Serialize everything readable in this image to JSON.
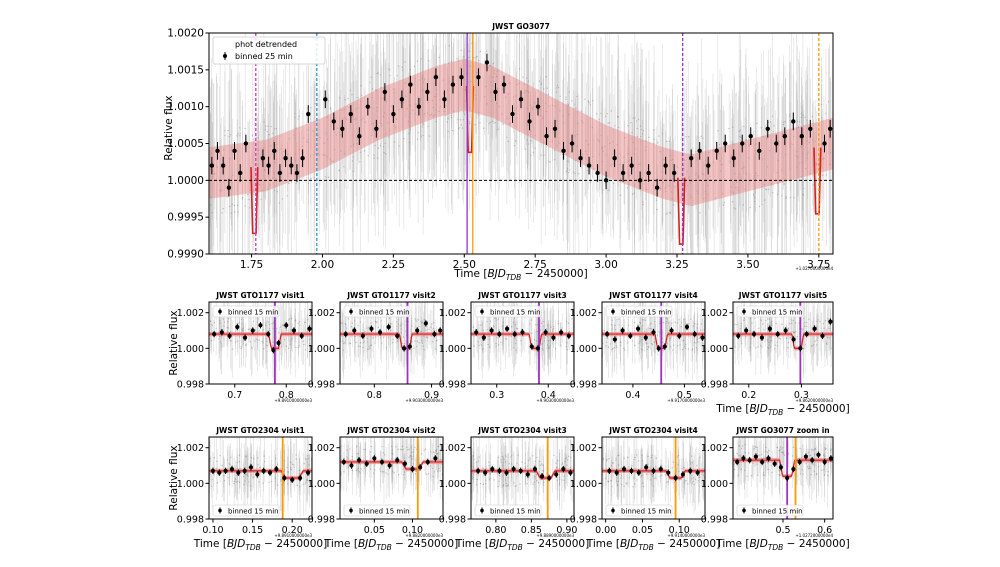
{
  "figure": {
    "xlabel_prefix": "Time [",
    "xlabel_math": "BJD",
    "xlabel_sub": "TDB",
    "xlabel_suffix": " − 2450000]",
    "ylabel": "Relative flux"
  },
  "chart_data": [
    {
      "id": "main",
      "type": "scatter",
      "title": "JWST GO3077",
      "xlim": [
        1.6,
        3.8
      ],
      "ylim": [
        0.999,
        1.002
      ],
      "xticks": [
        1.75,
        2.0,
        2.25,
        2.5,
        2.75,
        3.0,
        3.25,
        3.5,
        3.75
      ],
      "xticklabels": [
        "1.75",
        "2.00",
        "2.25",
        "2.50",
        "2.75",
        "3.00",
        "3.25",
        "3.50",
        "3.75"
      ],
      "yticks": [
        0.999,
        0.9995,
        1.0,
        1.0005,
        1.001,
        1.0015,
        1.002
      ],
      "yticklabels": [
        "0.9990",
        "0.9995",
        "1.0000",
        "1.0005",
        "1.0010",
        "1.0015",
        "1.0020"
      ],
      "offset": "+1.0270000000e4",
      "legend": [
        "phot detrended",
        "binned 25 min"
      ],
      "vlines": [
        {
          "x": 1.765,
          "color": "#cc33cc",
          "style": "dashed"
        },
        {
          "x": 1.98,
          "color": "#3399cc",
          "style": "dashed"
        },
        {
          "x": 2.51,
          "color": "#9933cc",
          "style": "solid"
        },
        {
          "x": 2.53,
          "color": "#ff9900",
          "style": "solid"
        },
        {
          "x": 3.27,
          "color": "#9933cc",
          "style": "dashed"
        },
        {
          "x": 3.75,
          "color": "#ff9900",
          "style": "dashed"
        }
      ],
      "transits": [
        {
          "x": 1.76,
          "depth": 0.0009
        },
        {
          "x": 2.52,
          "depth": 0.0009
        },
        {
          "x": 3.265,
          "depth": 0.0009
        },
        {
          "x": 3.745,
          "depth": 0.0009
        }
      ],
      "model_x": [
        1.6,
        1.8,
        2.0,
        2.2,
        2.4,
        2.5,
        2.6,
        2.8,
        3.0,
        3.2,
        3.3,
        3.5,
        3.7,
        3.8
      ],
      "model_y": [
        1.0001,
        1.0002,
        1.0005,
        1.0009,
        1.0012,
        1.0013,
        1.0012,
        1.0008,
        1.0004,
        1.0001,
        1.0,
        1.0002,
        1.0004,
        1.0005
      ],
      "binned_x": [
        1.61,
        1.63,
        1.65,
        1.67,
        1.69,
        1.71,
        1.73,
        1.79,
        1.81,
        1.83,
        1.85,
        1.87,
        1.89,
        1.91,
        1.93,
        1.95,
        2.01,
        2.04,
        2.07,
        2.1,
        2.13,
        2.16,
        2.19,
        2.22,
        2.25,
        2.28,
        2.31,
        2.34,
        2.37,
        2.4,
        2.43,
        2.46,
        2.49,
        2.55,
        2.58,
        2.61,
        2.64,
        2.67,
        2.7,
        2.73,
        2.76,
        2.79,
        2.82,
        2.85,
        2.88,
        2.91,
        2.94,
        2.97,
        3.0,
        3.03,
        3.06,
        3.09,
        3.12,
        3.15,
        3.18,
        3.21,
        3.24,
        3.3,
        3.33,
        3.36,
        3.39,
        3.42,
        3.45,
        3.48,
        3.51,
        3.54,
        3.57,
        3.6,
        3.63,
        3.66,
        3.69,
        3.72,
        3.77,
        3.79
      ],
      "binned_y": [
        1.0002,
        1.0004,
        1.0002,
        0.9999,
        1.0004,
        1.0001,
        1.0005,
        1.0003,
        1.0002,
        1.0004,
        1.0001,
        1.0003,
        1.0002,
        1.0001,
        1.0003,
        1.0009,
        1.0011,
        1.0008,
        1.0007,
        1.0009,
        1.0006,
        1.001,
        1.0007,
        1.0012,
        1.0009,
        1.0011,
        1.0013,
        1.001,
        1.0012,
        1.0014,
        1.0011,
        1.0013,
        1.0014,
        1.0014,
        1.0016,
        1.0012,
        1.0013,
        1.0009,
        1.0011,
        1.0008,
        1.001,
        1.0006,
        1.0007,
        1.0004,
        1.0005,
        1.0003,
        1.0002,
        1.0001,
        1.0,
        1.0003,
        1.0001,
        1.0002,
        1.0,
        1.0001,
        0.9999,
        1.0002,
        1.0001,
        1.0003,
        1.0004,
        1.0002,
        1.0004,
        1.0005,
        1.0003,
        1.0005,
        1.0006,
        1.0004,
        1.0007,
        1.0005,
        1.0006,
        1.0008,
        1.0006,
        1.0007,
        1.0005,
        1.0007
      ]
    },
    {
      "id": "gto1177_v1",
      "type": "scatter",
      "title": "JWST GTO1177 visit1",
      "xlim": [
        0.65,
        0.85
      ],
      "ylim": [
        0.998,
        1.0026
      ],
      "xticks": [
        0.7,
        0.8
      ],
      "xticklabels": [
        "0.7",
        "0.8"
      ],
      "yticks": [
        0.998,
        1.0,
        1.002
      ],
      "yticklabels": [
        "0.998",
        "1.000",
        "1.002"
      ],
      "offset": "+9.8910000000e3",
      "legend": [
        "binned 15 min"
      ],
      "legend_loc": "top",
      "vlines": [
        {
          "x": 0.778,
          "color": "#a030c0",
          "style": "solid"
        }
      ],
      "transit": {
        "center": 0.778,
        "half_width": 0.012,
        "depth": 0.0008,
        "base": 1.0008
      },
      "binned_x": [
        0.66,
        0.675,
        0.69,
        0.705,
        0.72,
        0.735,
        0.75,
        0.765,
        0.775,
        0.785,
        0.8,
        0.815,
        0.83,
        0.845
      ],
      "binned_y": [
        1.0008,
        1.0009,
        1.0007,
        1.0012,
        1.0006,
        1.001,
        1.0013,
        1.0008,
        0.9999,
        1.0003,
        1.0013,
        1.001,
        1.0007,
        1.0011
      ]
    },
    {
      "id": "gto1177_v2",
      "type": "scatter",
      "title": "JWST GTO1177 visit2",
      "xlim": [
        0.74,
        0.92
      ],
      "ylim": [
        0.998,
        1.0026
      ],
      "xticks": [
        0.8,
        0.9
      ],
      "xticklabels": [
        "0.8",
        "0.9"
      ],
      "yticks": [
        0.998,
        1.0,
        1.002
      ],
      "yticklabels": [
        "0.998",
        "1.000",
        "1.002"
      ],
      "offset": "+9.9030000000e3",
      "legend": [
        "binned 15 min"
      ],
      "legend_loc": "top",
      "vlines": [
        {
          "x": 0.858,
          "color": "#a030c0",
          "style": "solid"
        }
      ],
      "transit": {
        "center": 0.855,
        "half_width": 0.011,
        "depth": 0.0008,
        "base": 1.0008
      },
      "binned_x": [
        0.75,
        0.765,
        0.78,
        0.795,
        0.81,
        0.825,
        0.84,
        0.852,
        0.862,
        0.875,
        0.89,
        0.905,
        0.915
      ],
      "binned_y": [
        1.0008,
        1.001,
        1.0007,
        1.0011,
        1.0009,
        1.0012,
        1.0007,
        1.0,
        1.0001,
        1.001,
        1.0014,
        1.0008,
        1.001
      ]
    },
    {
      "id": "gto1177_v3",
      "type": "scatter",
      "title": "JWST GTO1177 visit3",
      "xlim": [
        0.25,
        0.45
      ],
      "ylim": [
        0.998,
        1.0026
      ],
      "xticks": [
        0.3,
        0.4
      ],
      "xticklabels": [
        "0.3",
        "0.4"
      ],
      "yticks": [
        0.998,
        1.0,
        1.002
      ],
      "yticklabels": [
        "0.998",
        "1.000",
        "1.002"
      ],
      "offset": "+9.9030000000e3",
      "legend": [
        "binned 15 min"
      ],
      "legend_loc": "top",
      "vlines": [
        {
          "x": 0.382,
          "color": "#a030c0",
          "style": "solid"
        }
      ],
      "transit": {
        "center": 0.375,
        "half_width": 0.012,
        "depth": 0.0008,
        "base": 1.0008
      },
      "binned_x": [
        0.26,
        0.275,
        0.29,
        0.305,
        0.32,
        0.335,
        0.35,
        0.368,
        0.38,
        0.395,
        0.41,
        0.425,
        0.44
      ],
      "binned_y": [
        1.0009,
        1.0006,
        1.001,
        1.0008,
        1.0011,
        1.0008,
        1.0009,
        1.0001,
        1.0,
        1.0009,
        1.0006,
        1.0009,
        1.0007
      ]
    },
    {
      "id": "gto1177_v4",
      "type": "scatter",
      "title": "JWST GTO1177 visit4",
      "xlim": [
        0.34,
        0.54
      ],
      "ylim": [
        0.998,
        1.0026
      ],
      "xticks": [
        0.4,
        0.5
      ],
      "xticklabels": [
        "0.4",
        "0.5"
      ],
      "yticks": [
        0.998,
        1.0,
        1.002
      ],
      "yticklabels": [
        "0.998",
        "1.000",
        "1.002"
      ],
      "offset": "+9.9170000000e3",
      "legend": [
        "binned 15 min"
      ],
      "legend_loc": "top",
      "vlines": [
        {
          "x": 0.455,
          "color": "#a030c0",
          "style": "solid"
        }
      ],
      "transit": {
        "center": 0.455,
        "half_width": 0.012,
        "depth": 0.0008,
        "base": 1.0008
      },
      "binned_x": [
        0.35,
        0.365,
        0.38,
        0.395,
        0.41,
        0.425,
        0.44,
        0.45,
        0.462,
        0.475,
        0.49,
        0.505,
        0.52,
        0.535
      ],
      "binned_y": [
        1.0008,
        1.0005,
        1.001,
        1.0007,
        1.0011,
        1.0006,
        1.0009,
        1.0,
        1.0001,
        1.001,
        1.0007,
        1.0012,
        1.0008,
        1.0006
      ]
    },
    {
      "id": "gto1177_v5",
      "type": "scatter",
      "title": "JWST GTO1177 visit5",
      "xlim": [
        0.17,
        0.36
      ],
      "ylim": [
        0.998,
        1.0026
      ],
      "xticks": [
        0.2,
        0.3
      ],
      "xticklabels": [
        "0.2",
        "0.3"
      ],
      "yticks": [
        0.998,
        1.0,
        1.002
      ],
      "yticklabels": [
        "0.998",
        "1.000",
        "1.002"
      ],
      "offset": "+9.8620000000e3",
      "legend": [
        "binned 15 min"
      ],
      "legend_loc": "top",
      "vlines": [
        {
          "x": 0.298,
          "color": "#a030c0",
          "style": "solid"
        }
      ],
      "transit": {
        "center": 0.293,
        "half_width": 0.011,
        "depth": 0.0008,
        "base": 1.0008
      },
      "binned_x": [
        0.18,
        0.195,
        0.21,
        0.225,
        0.24,
        0.255,
        0.27,
        0.285,
        0.298,
        0.31,
        0.325,
        0.34,
        0.355
      ],
      "binned_y": [
        1.0007,
        1.001,
        1.0008,
        1.0006,
        1.0011,
        1.0008,
        1.001,
        1.0005,
        1.0,
        1.0008,
        1.0011,
        1.0007,
        1.0015
      ]
    },
    {
      "id": "gto2304_v1",
      "type": "scatter",
      "title": "JWST GTO2304 visit1",
      "xlim": [
        0.095,
        0.225
      ],
      "ylim": [
        0.998,
        1.0026
      ],
      "xticks": [
        0.1,
        0.15,
        0.2
      ],
      "xticklabels": [
        "0.10",
        "0.15",
        "0.20"
      ],
      "yticks": [
        0.998,
        1.0,
        1.002
      ],
      "yticklabels": [
        "0.998",
        "1.000",
        "1.002"
      ],
      "offset": "+9.8910000000e3",
      "legend": [
        "binned 15 min"
      ],
      "legend_loc": "bottom",
      "vlines": [
        {
          "x": 0.188,
          "color": "#ff9900",
          "style": "solid"
        }
      ],
      "transit": {
        "center": 0.2,
        "half_width": 0.014,
        "depth": 0.0004,
        "base": 1.0007
      },
      "binned_x": [
        0.1,
        0.108,
        0.116,
        0.124,
        0.132,
        0.14,
        0.148,
        0.156,
        0.164,
        0.172,
        0.18,
        0.19,
        0.2,
        0.21,
        0.22
      ],
      "binned_y": [
        1.0007,
        1.0006,
        1.0007,
        1.0008,
        1.0006,
        1.0007,
        1.0009,
        1.0005,
        1.0007,
        1.0006,
        1.0008,
        1.0003,
        1.0002,
        1.0003,
        1.0006
      ]
    },
    {
      "id": "gto2304_v2",
      "type": "scatter",
      "title": "JWST GTO2304 visit2",
      "xlim": [
        0.005,
        0.14
      ],
      "ylim": [
        0.998,
        1.0026
      ],
      "xticks": [
        0.05,
        0.1
      ],
      "xticklabels": [
        "0.05",
        "0.10"
      ],
      "yticks": [
        0.998,
        1.0,
        1.002
      ],
      "yticklabels": [
        "0.998",
        "1.000",
        "1.002"
      ],
      "offset": "+9.8820000000e3",
      "legend": [
        "binned 15 min"
      ],
      "legend_loc": "bottom",
      "vlines": [
        {
          "x": 0.107,
          "color": "#ff9900",
          "style": "solid"
        }
      ],
      "transit": {
        "center": 0.1,
        "half_width": 0.014,
        "depth": 0.0004,
        "base": 1.0012
      },
      "binned_x": [
        0.01,
        0.02,
        0.03,
        0.04,
        0.05,
        0.06,
        0.07,
        0.08,
        0.09,
        0.1,
        0.11,
        0.12,
        0.13
      ],
      "binned_y": [
        1.0012,
        1.001,
        1.0013,
        1.0011,
        1.0014,
        1.0012,
        1.001,
        1.0013,
        1.0011,
        1.0008,
        1.0009,
        1.0012,
        1.0014
      ]
    },
    {
      "id": "gto2304_v3",
      "type": "scatter",
      "title": "JWST GTO2304 visit3",
      "xlim": [
        0.765,
        0.91
      ],
      "ylim": [
        0.998,
        1.0026
      ],
      "xticks": [
        0.8,
        0.85,
        0.9
      ],
      "xticklabels": [
        "0.80",
        "0.85",
        "0.90"
      ],
      "yticks": [
        0.998,
        1.0,
        1.002
      ],
      "yticklabels": [
        "0.998",
        "1.000",
        "1.002"
      ],
      "offset": "+9.8890000000e3",
      "legend": [
        "binned 15 min"
      ],
      "legend_loc": "bottom",
      "vlines": [
        {
          "x": 0.873,
          "color": "#ff9900",
          "style": "solid"
        }
      ],
      "transit": {
        "center": 0.87,
        "half_width": 0.013,
        "depth": 0.0004,
        "base": 1.0007
      },
      "binned_x": [
        0.775,
        0.785,
        0.795,
        0.805,
        0.815,
        0.825,
        0.835,
        0.845,
        0.855,
        0.865,
        0.875,
        0.885,
        0.895,
        0.905
      ],
      "binned_y": [
        1.0007,
        1.0006,
        1.0008,
        1.0007,
        1.0006,
        1.0008,
        1.0007,
        1.0005,
        1.0008,
        1.0004,
        1.0003,
        1.0005,
        1.0008,
        1.0006
      ]
    },
    {
      "id": "gto2304_v4",
      "type": "scatter",
      "title": "JWST GTO2304 visit4",
      "xlim": [
        -0.005,
        0.135
      ],
      "ylim": [
        0.998,
        1.0026
      ],
      "xticks": [
        0.0,
        0.05,
        0.1
      ],
      "xticklabels": [
        "0.00",
        "0.05",
        "0.10"
      ],
      "yticks": [
        0.998,
        1.0,
        1.002
      ],
      "yticklabels": [
        "0.998",
        "1.000",
        "1.002"
      ],
      "offset": "+9.9140000000e3",
      "legend": [
        "binned 15 min"
      ],
      "legend_loc": "bottom",
      "vlines": [
        {
          "x": 0.095,
          "color": "#ff9900",
          "style": "solid"
        }
      ],
      "transit": {
        "center": 0.095,
        "half_width": 0.013,
        "depth": 0.0004,
        "base": 1.0007
      },
      "binned_x": [
        0.005,
        0.015,
        0.025,
        0.035,
        0.045,
        0.055,
        0.065,
        0.075,
        0.085,
        0.095,
        0.105,
        0.115,
        0.125
      ],
      "binned_y": [
        1.0007,
        1.0006,
        1.0008,
        1.0007,
        1.0006,
        1.0009,
        1.0007,
        1.0008,
        1.0006,
        1.0003,
        1.0005,
        1.0007,
        1.0006
      ]
    },
    {
      "id": "go3077_zoom",
      "type": "scatter",
      "title": "JWST GO3077 zoom in",
      "xlim": [
        0.38,
        0.62
      ],
      "ylim": [
        0.998,
        1.0026
      ],
      "xticks": [
        0.5,
        0.6
      ],
      "xticklabels": [
        "0.5",
        "0.6"
      ],
      "yticks": [
        0.998,
        1.0,
        1.002
      ],
      "yticklabels": [
        "0.998",
        "1.000",
        "1.002"
      ],
      "offset": "+1.0272000000e4",
      "legend": [
        "binned 15 min"
      ],
      "legend_loc": "bottom",
      "vlines": [
        {
          "x": 0.51,
          "color": "#a030c0",
          "style": "solid"
        },
        {
          "x": 0.53,
          "color": "#ff9900",
          "style": "solid"
        }
      ],
      "transit": {
        "center": 0.51,
        "half_width": 0.018,
        "depth": 0.0009,
        "base": 1.0013
      },
      "binned_x": [
        0.39,
        0.405,
        0.42,
        0.435,
        0.45,
        0.465,
        0.48,
        0.495,
        0.51,
        0.525,
        0.54,
        0.555,
        0.57,
        0.585,
        0.6,
        0.615
      ],
      "binned_y": [
        1.0012,
        1.0014,
        1.0013,
        1.0015,
        1.0012,
        1.0014,
        1.0011,
        1.0009,
        1.0003,
        1.0008,
        1.0012,
        1.0015,
        1.0013,
        1.0016,
        1.0012,
        1.0014
      ]
    }
  ]
}
